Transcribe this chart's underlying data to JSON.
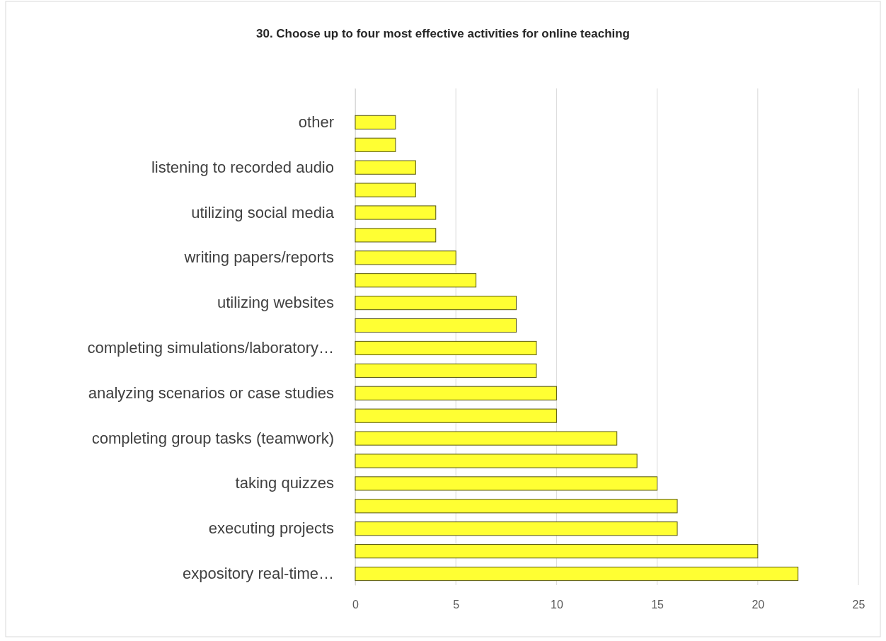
{
  "chart_data": {
    "type": "bar",
    "orientation": "horizontal",
    "title": "30. Choose up to four most effective activities for online teaching",
    "categories": [
      null,
      "other",
      null,
      "listening to recorded audio",
      null,
      "utilizing social media",
      null,
      "writing papers/reports",
      null,
      "utilizing websites",
      null,
      "completing simulations/laboratory…",
      null,
      "analyzing scenarios or case studies",
      null,
      "completing group tasks (teamwork)",
      null,
      "taking quizzes",
      null,
      "executing projects",
      null,
      "expository real-time…"
    ],
    "values": [
      0,
      2,
      2,
      3,
      3,
      4,
      4,
      5,
      6,
      8,
      8,
      9,
      9,
      10,
      10,
      13,
      14,
      15,
      16,
      16,
      20,
      22
    ],
    "color": "#ffff33",
    "xlim": [
      0,
      25
    ],
    "xticks": [
      0,
      5,
      10,
      15,
      20,
      25
    ],
    "grid": "x"
  }
}
